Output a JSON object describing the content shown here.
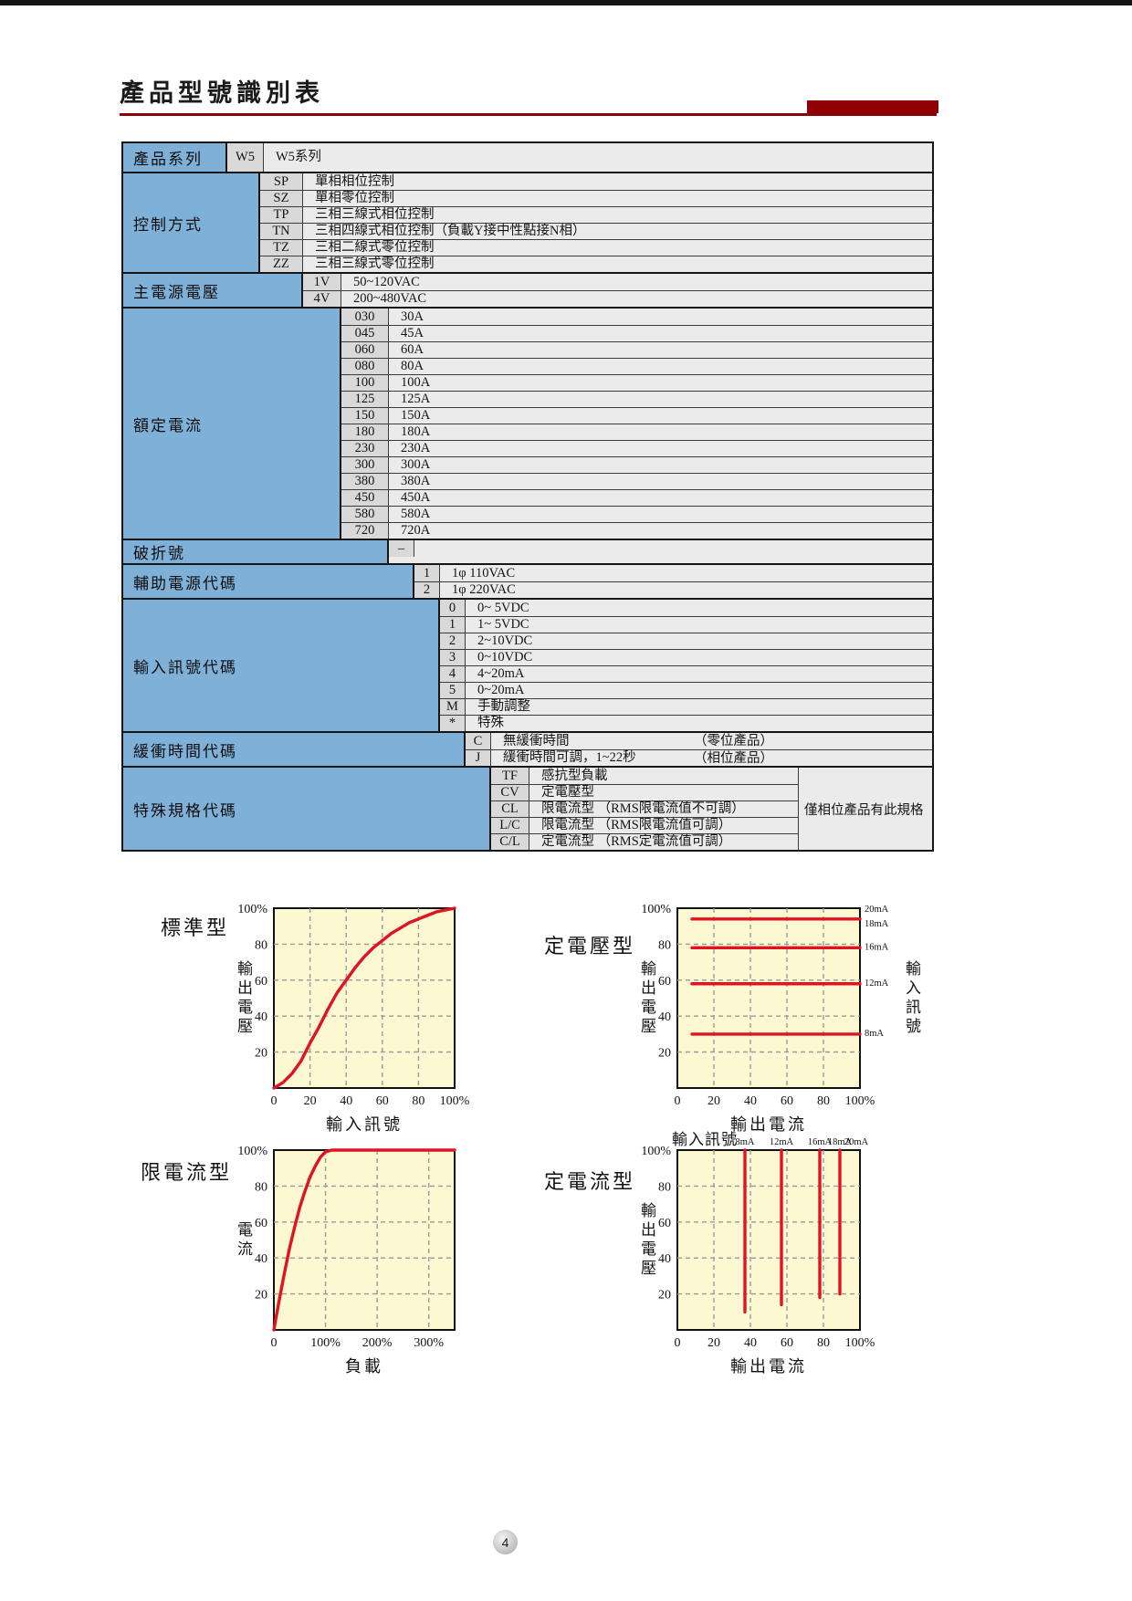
{
  "page": {
    "title": "產品型號識別表",
    "page_number": "4"
  },
  "colors": {
    "header_red": "#8e0003",
    "series_red": "#e01322",
    "label_blue": "#7fb0d8",
    "code_cell_gray": "#d9d9d9",
    "desc_cell_gray": "#ebebeb",
    "chart_bg": "#fcf8d2",
    "grid_gray": "#9a9a9a"
  },
  "table": {
    "sections": [
      {
        "name": "product-series",
        "label": "產品系列",
        "rows": [
          {
            "code": "W5",
            "desc": "W5系列"
          }
        ]
      },
      {
        "name": "control-method",
        "label": "控制方式",
        "rows": [
          {
            "code": "SP",
            "desc": "單相相位控制"
          },
          {
            "code": "SZ",
            "desc": "單相零位控制"
          },
          {
            "code": "TP",
            "desc": "三相三線式相位控制"
          },
          {
            "code": "TN",
            "desc": "三相四線式相位控制（負載Y接中性點接N相）"
          },
          {
            "code": "TZ",
            "desc": "三相二線式零位控制"
          },
          {
            "code": "ZZ",
            "desc": "三相三線式零位控制"
          }
        ]
      },
      {
        "name": "main-power-voltage",
        "label": "主電源電壓",
        "rows": [
          {
            "code": "1V",
            "desc": "50~120VAC"
          },
          {
            "code": "4V",
            "desc": "200~480VAC"
          }
        ]
      },
      {
        "name": "rated-current",
        "label": "額定電流",
        "rows": [
          {
            "code": "030",
            "desc": "30A"
          },
          {
            "code": "045",
            "desc": "45A"
          },
          {
            "code": "060",
            "desc": "60A"
          },
          {
            "code": "080",
            "desc": "80A"
          },
          {
            "code": "100",
            "desc": "100A"
          },
          {
            "code": "125",
            "desc": "125A"
          },
          {
            "code": "150",
            "desc": "150A"
          },
          {
            "code": "180",
            "desc": "180A"
          },
          {
            "code": "230",
            "desc": "230A"
          },
          {
            "code": "300",
            "desc": "300A"
          },
          {
            "code": "380",
            "desc": "380A"
          },
          {
            "code": "450",
            "desc": "450A"
          },
          {
            "code": "580",
            "desc": "580A"
          },
          {
            "code": "720",
            "desc": "720A"
          }
        ]
      },
      {
        "name": "dash",
        "label": "破折號",
        "rows": [
          {
            "code": "–",
            "desc": ""
          }
        ]
      },
      {
        "name": "aux-power-code",
        "label": "輔助電源代碼",
        "rows": [
          {
            "code": "1",
            "desc": "1φ 110VAC"
          },
          {
            "code": "2",
            "desc": "1φ 220VAC"
          }
        ]
      },
      {
        "name": "input-signal-code",
        "label": "輸入訊號代碼",
        "rows": [
          {
            "code": "0",
            "desc": "0~ 5VDC"
          },
          {
            "code": "1",
            "desc": "1~ 5VDC"
          },
          {
            "code": "2",
            "desc": "2~10VDC"
          },
          {
            "code": "3",
            "desc": "0~10VDC"
          },
          {
            "code": "4",
            "desc": "4~20mA"
          },
          {
            "code": "5",
            "desc": "0~20mA"
          },
          {
            "code": "M",
            "desc": "手動調整"
          },
          {
            "code": "*",
            "desc": "特殊"
          }
        ]
      },
      {
        "name": "soft-start-code",
        "label": "緩衝時間代碼",
        "rows": [
          {
            "code": "C",
            "desc": "無緩衝時間",
            "note": "（零位產品）"
          },
          {
            "code": "J",
            "desc": "緩衝時間可調，1~22秒",
            "note": "（相位產品）"
          }
        ]
      },
      {
        "name": "special-spec-code",
        "label": "特殊規格代碼",
        "side_note": "僅相位產品有此規格",
        "rows": [
          {
            "code": "TF",
            "desc": "感抗型負載"
          },
          {
            "code": "CV",
            "desc": "定電壓型"
          },
          {
            "code": "CL",
            "desc": "限電流型 （RMS限電流值不可調）"
          },
          {
            "code": "L/C",
            "desc": "限電流型 （RMS限電流值可調）"
          },
          {
            "code": "C/L",
            "desc": "定電流型 （RMS定電流值可調）"
          }
        ]
      }
    ]
  },
  "chart_data": [
    {
      "id": "standard",
      "type": "line",
      "title": "標準型",
      "xlabel": "輸入訊號",
      "ylabel": "輸出電壓",
      "xlim": [
        0,
        100
      ],
      "ylim": [
        0,
        100
      ],
      "grid": true,
      "xticks": [
        0,
        20,
        40,
        60,
        80,
        100
      ],
      "xtick_labels": [
        "0",
        "20",
        "40",
        "60",
        "80",
        "100%"
      ],
      "yticks": [
        20,
        40,
        60,
        80,
        100
      ],
      "ytick_labels": [
        "20",
        "40",
        "60",
        "80",
        "100%"
      ],
      "series": [
        {
          "name": "output-voltage-s-curve",
          "points": [
            [
              0,
              0
            ],
            [
              5,
              3
            ],
            [
              10,
              8
            ],
            [
              15,
              15
            ],
            [
              20,
              25
            ],
            [
              25,
              34
            ],
            [
              30,
              44
            ],
            [
              35,
              53
            ],
            [
              40,
              60
            ],
            [
              45,
              67
            ],
            [
              50,
              73
            ],
            [
              55,
              78
            ],
            [
              60,
              82
            ],
            [
              65,
              86
            ],
            [
              70,
              89
            ],
            [
              75,
              92
            ],
            [
              80,
              94
            ],
            [
              85,
              96
            ],
            [
              90,
              98
            ],
            [
              95,
              99
            ],
            [
              100,
              100
            ]
          ]
        }
      ]
    },
    {
      "id": "constant-voltage",
      "type": "line",
      "title": "定電壓型",
      "xlabel": "輸出電流",
      "ylabel": "輸出電壓",
      "ylabel_right": "輸入訊號",
      "xlim": [
        0,
        100
      ],
      "ylim": [
        0,
        100
      ],
      "grid": true,
      "xticks": [
        0,
        20,
        40,
        60,
        80,
        100
      ],
      "xtick_labels": [
        "0",
        "20",
        "40",
        "60",
        "80",
        "100%"
      ],
      "yticks": [
        20,
        40,
        60,
        80,
        100
      ],
      "ytick_labels": [
        "20",
        "40",
        "60",
        "80",
        "100%"
      ],
      "series": [
        {
          "name": "cv-line-94",
          "points": [
            [
              8,
              94
            ],
            [
              100,
              94
            ]
          ]
        },
        {
          "name": "cv-line-78",
          "points": [
            [
              8,
              78
            ],
            [
              100,
              78
            ]
          ]
        },
        {
          "name": "cv-line-58",
          "points": [
            [
              8,
              58
            ],
            [
              100,
              58
            ]
          ]
        },
        {
          "name": "cv-line-30",
          "points": [
            [
              8,
              30
            ],
            [
              100,
              30
            ]
          ]
        }
      ],
      "right_labels": [
        {
          "text": "20mA",
          "y": 100
        },
        {
          "text": "18mA",
          "y": 92
        },
        {
          "text": "16mA",
          "y": 79
        },
        {
          "text": "12mA",
          "y": 59
        },
        {
          "text": "8mA",
          "y": 31
        }
      ]
    },
    {
      "id": "current-limit",
      "type": "line",
      "title": "限電流型",
      "xlabel": "負載",
      "ylabel": "電流",
      "xlim": [
        0,
        350
      ],
      "ylim": [
        0,
        100
      ],
      "grid": true,
      "xticks": [
        0,
        100,
        200,
        300
      ],
      "xtick_labels": [
        "0",
        "100%",
        "200%",
        "300%"
      ],
      "yticks": [
        20,
        40,
        60,
        80,
        100
      ],
      "ytick_labels": [
        "20",
        "40",
        "60",
        "80",
        "100%"
      ],
      "series": [
        {
          "name": "current-limit-curve",
          "points": [
            [
              0,
              0
            ],
            [
              10,
              16
            ],
            [
              20,
              31
            ],
            [
              30,
              45
            ],
            [
              40,
              57
            ],
            [
              50,
              68
            ],
            [
              60,
              77
            ],
            [
              70,
              85
            ],
            [
              80,
              91
            ],
            [
              90,
              96
            ],
            [
              100,
              99
            ],
            [
              112,
              100
            ],
            [
              350,
              100
            ]
          ]
        }
      ]
    },
    {
      "id": "constant-current",
      "type": "line",
      "title": "定電流型",
      "xlabel": "輸出電流",
      "ylabel": "輸出電壓",
      "top_label": "輸入訊號",
      "xlim": [
        0,
        100
      ],
      "ylim": [
        0,
        100
      ],
      "grid": true,
      "xticks": [
        0,
        20,
        40,
        60,
        80,
        100
      ],
      "xtick_labels": [
        "0",
        "20",
        "40",
        "60",
        "80",
        "100%"
      ],
      "yticks": [
        20,
        40,
        60,
        80,
        100
      ],
      "ytick_labels": [
        "20",
        "40",
        "60",
        "80",
        "100%"
      ],
      "series": [
        {
          "name": "cc-line-8mA",
          "points": [
            [
              37,
              100
            ],
            [
              37,
              10
            ]
          ]
        },
        {
          "name": "cc-line-12mA",
          "points": [
            [
              57,
              100
            ],
            [
              57,
              14
            ]
          ]
        },
        {
          "name": "cc-line-16mA",
          "points": [
            [
              78,
              100
            ],
            [
              78,
              18
            ]
          ]
        },
        {
          "name": "cc-line-18mA",
          "points": [
            [
              89,
              100
            ],
            [
              89,
              20
            ]
          ]
        }
      ],
      "top_labels": [
        {
          "text": "8mA",
          "x": 37
        },
        {
          "text": "12mA",
          "x": 57
        },
        {
          "text": "16mA",
          "x": 78
        },
        {
          "text": "18mA",
          "x": 89
        },
        {
          "text": "20mA",
          "x": 98
        }
      ]
    }
  ]
}
